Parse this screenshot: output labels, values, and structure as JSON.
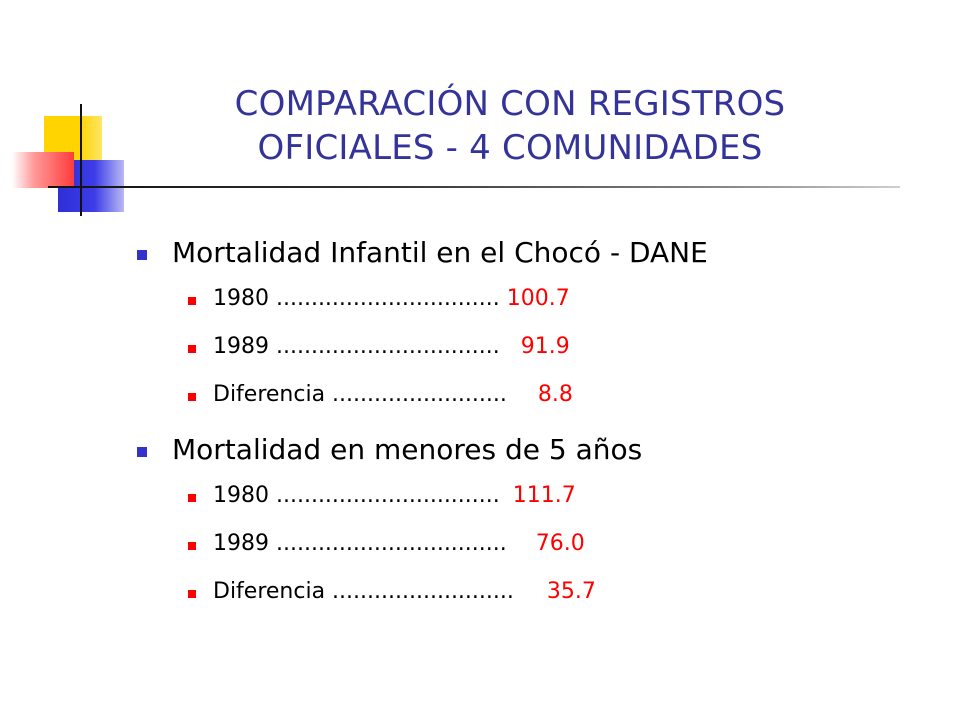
{
  "slide": {
    "title_lines": [
      "COMPARACIÓN CON REGISTROS",
      "OFICIALES - 4 COMUNIDADES"
    ],
    "colors": {
      "title": "#333399",
      "bullet_level1": "#3333cc",
      "bullet_level2": "#ff0000",
      "value": "#ff0000"
    },
    "sections": [
      {
        "heading": "Mortalidad Infantil en el Chocó - DANE",
        "rows": [
          {
            "label": "1980 ................................",
            "value": "100.7"
          },
          {
            "label": "1989 ................................",
            "value": "91.9"
          },
          {
            "label": "Diferencia .........................",
            "value": "8.8"
          }
        ]
      },
      {
        "heading": "Mortalidad en menores de 5 años",
        "rows": [
          {
            "label": "1980 ................................",
            "value": "111.7"
          },
          {
            "label": "1989 .................................",
            "value": "76.0"
          },
          {
            "label": "Diferencia ..........................",
            "value": "35.7"
          }
        ]
      }
    ]
  }
}
